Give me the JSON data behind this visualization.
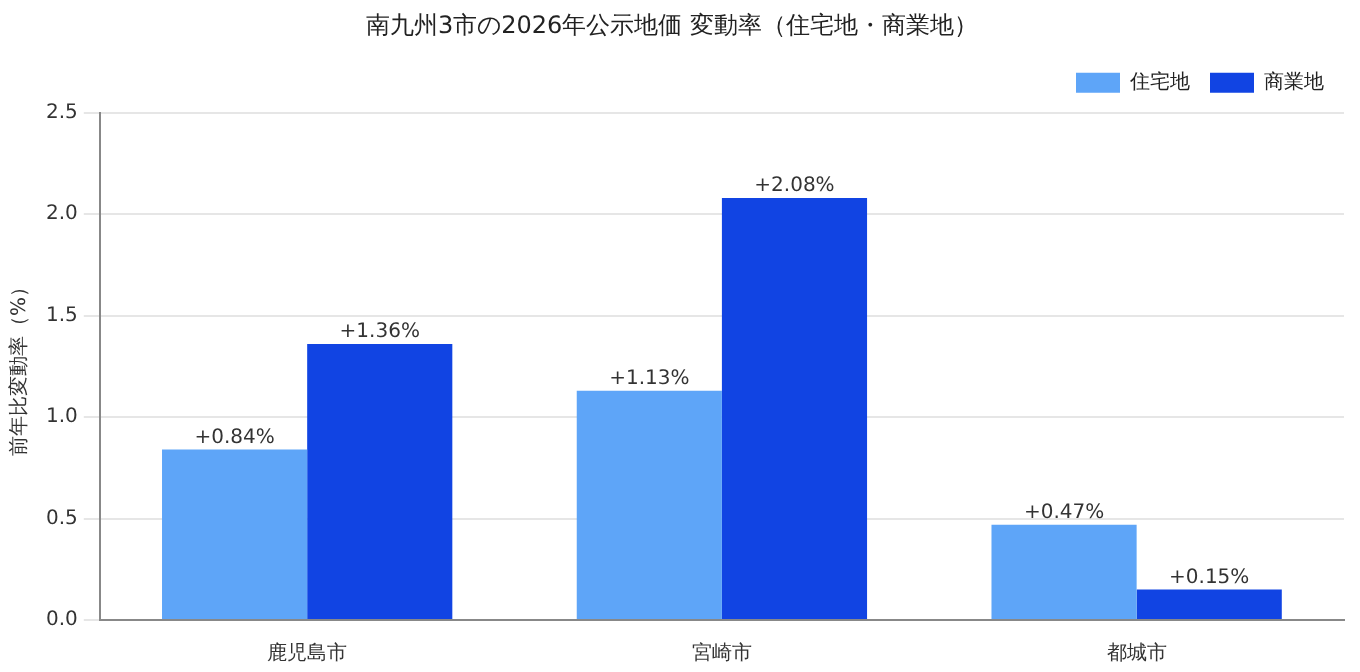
{
  "chart_data": {
    "type": "bar",
    "title": "南九州3市の2026年公示地価 変動率（住宅地・商業地）",
    "ylabel": "前年比変動率（%）",
    "categories": [
      "鹿児島市",
      "宮崎市",
      "都城市"
    ],
    "series": [
      {
        "name": "住宅地",
        "color": "#5ea5f8",
        "values": [
          0.84,
          1.13,
          0.47
        ],
        "value_labels": [
          "+0.84%",
          "+1.13%",
          "+0.47%"
        ]
      },
      {
        "name": "商業地",
        "color": "#1144e3",
        "values": [
          1.36,
          2.08,
          0.15
        ],
        "value_labels": [
          "+1.36%",
          "+2.08%",
          "+0.15%"
        ]
      }
    ],
    "ylim": [
      0,
      2.5
    ],
    "yticks": [
      {
        "value": 0,
        "label": "0.0"
      },
      {
        "value": 0.5,
        "label": "0.5"
      },
      {
        "value": 1,
        "label": "1.0"
      },
      {
        "value": 1.5,
        "label": "1.5"
      },
      {
        "value": 2,
        "label": "2.0"
      },
      {
        "value": 2.5,
        "label": "2.5"
      }
    ],
    "grid": "y",
    "legend": "top right"
  }
}
